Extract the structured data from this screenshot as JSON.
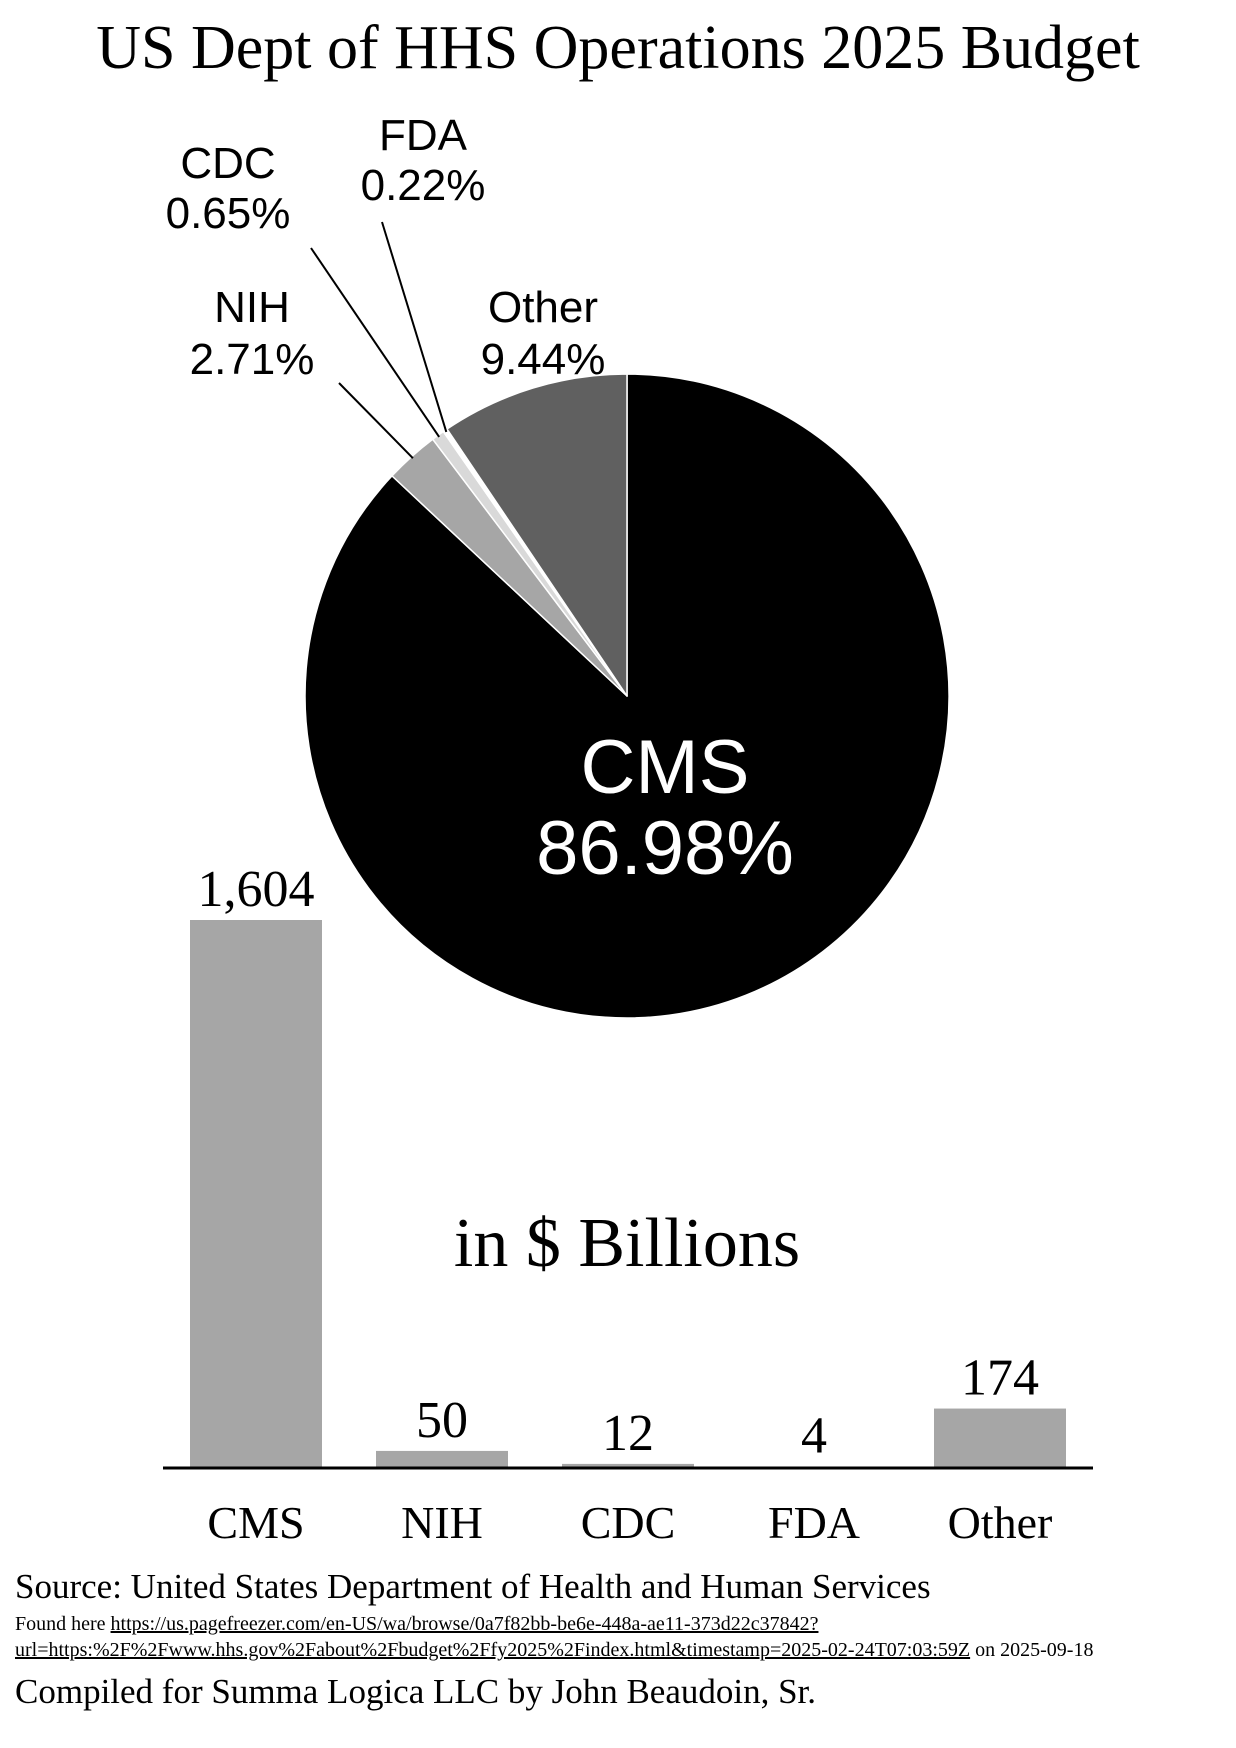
{
  "title": "US Dept of HHS Operations 2025 Budget",
  "colors": {
    "cms_slice": "#000000",
    "nih_slice": "#a6a6a6",
    "cdc_slice": "#d9d9d9",
    "fda_slice": "#ffffff",
    "other_slice": "#606060",
    "bar": "#a6a6a6",
    "axis": "#000000"
  },
  "chart_data": [
    {
      "type": "pie",
      "slices": [
        {
          "label": "CMS",
          "percent_label": "86.98%",
          "value": 86.98
        },
        {
          "label": "NIH",
          "percent_label": "2.71%",
          "value": 2.71
        },
        {
          "label": "CDC",
          "percent_label": "0.65%",
          "value": 0.65
        },
        {
          "label": "FDA",
          "percent_label": "0.22%",
          "value": 0.22
        },
        {
          "label": "Other",
          "percent_label": "9.44%",
          "value": 9.44
        }
      ]
    },
    {
      "type": "bar",
      "title": "in $ Billions",
      "categories": [
        "CMS",
        "NIH",
        "CDC",
        "FDA",
        "Other"
      ],
      "values": [
        1604,
        50,
        12,
        4,
        174
      ],
      "value_labels": [
        "1,604",
        "50",
        "12",
        "4",
        "174"
      ],
      "ylim": [
        0,
        1604
      ]
    }
  ],
  "footer": {
    "source": "Source: United States Department of Health and Human Services",
    "found_prefix": "Found here",
    "link_text": "https://us.pagefreezer.com/en-US/wa/browse/0a7f82bb-be6e-448a-ae11-373d22c37842?url=https:%2F%2Fwww.hhs.gov%2Fabout%2Fbudget%2Ffy2025%2Findex.html&timestamp=2025-02-24T07:03:59Z",
    "found_suffix": "on 2025-09-18",
    "compiled": "Compiled for Summa Logica LLC by John Beaudoin, Sr."
  }
}
